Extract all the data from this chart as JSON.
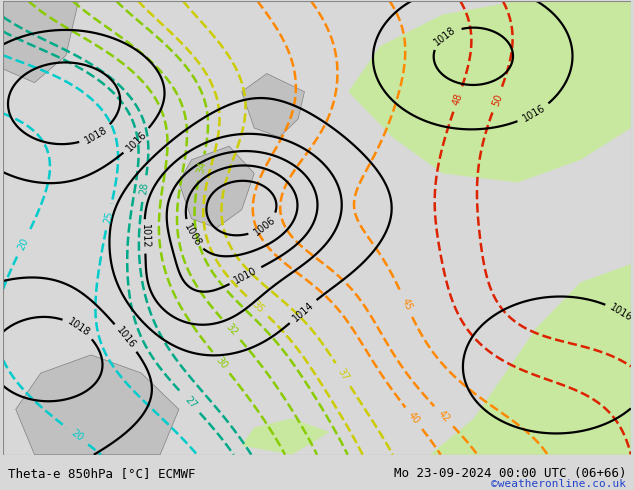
{
  "title_left": "Theta-e 850hPa [°C] ECMWF",
  "title_right": "Mo 23-09-2024 00:00 UTC (06+66)",
  "credit": "©weatheronline.co.uk",
  "bg_color": "#d8d8d8",
  "land_color": "#c0c0c0",
  "green_fill": "#c8e8a0",
  "fig_width": 6.34,
  "fig_height": 4.9,
  "dpi": 100,
  "pressure_color": "#000000",
  "theta_color_cyan": "#00cccc",
  "theta_color_teal": "#00aa88",
  "theta_color_lgreen": "#88cc00",
  "theta_color_yellow": "#cccc00",
  "theta_color_orange": "#ff8800",
  "theta_color_red": "#dd2200"
}
